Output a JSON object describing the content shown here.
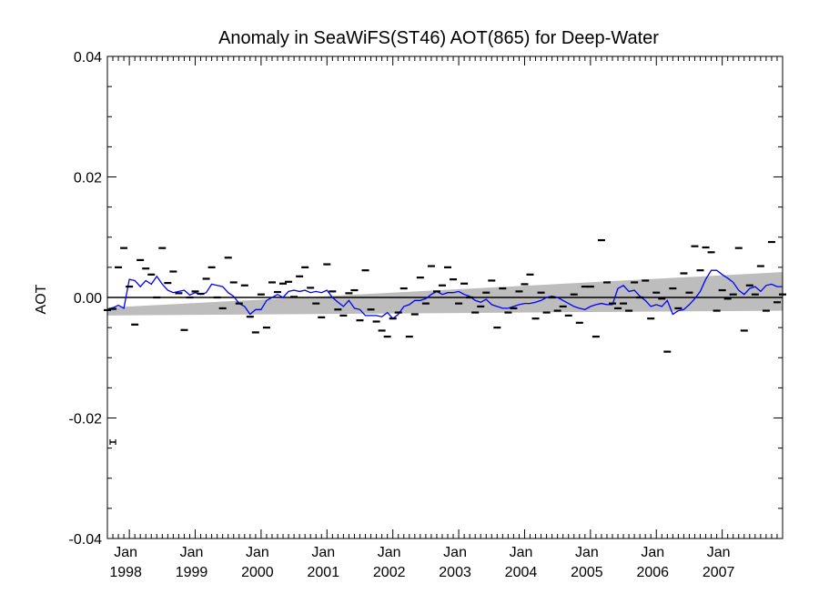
{
  "chart_data": {
    "type": "scatter",
    "title": "Anomaly in SeaWiFS(ST46) AOT(865) for Deep-Water",
    "xlabel": "",
    "ylabel": "AOT",
    "ylim": [
      -0.04,
      0.04
    ],
    "xlim": [
      "1997-09",
      "2007-12"
    ],
    "yticks": [
      "0.04",
      "0.02",
      "0.00",
      "-0.02",
      "-0.04"
    ],
    "ytick_values": [
      0.04,
      0.02,
      0.0,
      -0.02,
      -0.04
    ],
    "xticks": [
      {
        "month": "Jan",
        "year": "1998",
        "date": "1998-01"
      },
      {
        "month": "Jan",
        "year": "1999",
        "date": "1999-01"
      },
      {
        "month": "Jan",
        "year": "2000",
        "date": "2000-01"
      },
      {
        "month": "Jan",
        "year": "2001",
        "date": "2001-01"
      },
      {
        "month": "Jan",
        "year": "2002",
        "date": "2002-01"
      },
      {
        "month": "Jan",
        "year": "2003",
        "date": "2003-01"
      },
      {
        "month": "Jan",
        "year": "2004",
        "date": "2004-01"
      },
      {
        "month": "Jan",
        "year": "2005",
        "date": "2005-01"
      },
      {
        "month": "Jan",
        "year": "2006",
        "date": "2006-01"
      },
      {
        "month": "Jan",
        "year": "2007",
        "date": "2007-01"
      }
    ],
    "zero_line": true,
    "grid": false,
    "error_bar_sample": {
      "x": "1997-10",
      "y": -0.024,
      "halfwidth_months": 0.5
    },
    "trend_band": {
      "x": [
        "1997-09",
        "2007-12"
      ],
      "lower": [
        -0.003,
        -0.0022
      ],
      "upper": [
        -0.0017,
        0.0042
      ]
    },
    "series": [
      {
        "kind": "monthly_anomalies",
        "color": "#000000",
        "x": [
          "1997-09",
          "1997-10",
          "1997-11",
          "1997-12",
          "1998-01",
          "1998-02",
          "1998-03",
          "1998-04",
          "1998-05",
          "1998-06",
          "1998-07",
          "1998-08",
          "1998-09",
          "1998-10",
          "1998-11",
          "1998-12",
          "1999-01",
          "1999-02",
          "1999-03",
          "1999-04",
          "1999-05",
          "1999-06",
          "1999-07",
          "1999-08",
          "1999-09",
          "1999-10",
          "1999-11",
          "1999-12",
          "2000-01",
          "2000-02",
          "2000-03",
          "2000-04",
          "2000-05",
          "2000-06",
          "2000-07",
          "2000-08",
          "2000-09",
          "2000-10",
          "2000-11",
          "2000-12",
          "2001-01",
          "2001-02",
          "2001-03",
          "2001-04",
          "2001-05",
          "2001-06",
          "2001-07",
          "2001-08",
          "2001-09",
          "2001-10",
          "2001-11",
          "2001-12",
          "2002-01",
          "2002-02",
          "2002-03",
          "2002-04",
          "2002-05",
          "2002-06",
          "2002-07",
          "2002-08",
          "2002-09",
          "2002-10",
          "2002-11",
          "2002-12",
          "2003-01",
          "2003-02",
          "2003-03",
          "2003-04",
          "2003-05",
          "2003-06",
          "2003-07",
          "2003-08",
          "2003-09",
          "2003-10",
          "2003-11",
          "2003-12",
          "2004-01",
          "2004-02",
          "2004-03",
          "2004-04",
          "2004-05",
          "2004-06",
          "2004-07",
          "2004-08",
          "2004-09",
          "2004-10",
          "2004-11",
          "2004-12",
          "2005-01",
          "2005-02",
          "2005-03",
          "2005-04",
          "2005-05",
          "2005-06",
          "2005-07",
          "2005-08",
          "2005-09",
          "2005-10",
          "2005-11",
          "2005-12",
          "2006-01",
          "2006-02",
          "2006-03",
          "2006-04",
          "2006-05",
          "2006-06",
          "2006-07",
          "2006-08",
          "2006-09",
          "2006-10",
          "2006-11",
          "2006-12",
          "2007-01",
          "2007-02",
          "2007-03",
          "2007-04",
          "2007-05",
          "2007-06",
          "2007-07",
          "2007-08",
          "2007-09",
          "2007-10",
          "2007-11",
          "2007-12"
        ],
        "y": [
          -0.0021,
          -0.0019,
          0.005,
          0.0082,
          0.0018,
          -0.0045,
          0.0062,
          0.0048,
          0.0038,
          0.0,
          0.0082,
          0.0024,
          0.0043,
          0.0007,
          -0.0054,
          0.0,
          0.001,
          0.0006,
          0.0031,
          0.005,
          0.0,
          -0.0018,
          0.0066,
          0.0025,
          -0.001,
          0.002,
          -0.0032,
          -0.0058,
          0.0005,
          -0.005,
          0.0025,
          0.0009,
          0.0023,
          0.0026,
          0.0001,
          0.0035,
          0.005,
          0.0016,
          -0.001,
          -0.0033,
          0.0055,
          0.001,
          -0.002,
          -0.003,
          0.0007,
          0.0012,
          -0.0038,
          0.0045,
          -0.002,
          -0.004,
          -0.0055,
          -0.0065,
          -0.0035,
          -0.0025,
          0.0015,
          -0.0065,
          -0.0028,
          0.0033,
          -0.001,
          0.0052,
          0.001,
          0.002,
          0.005,
          0.003,
          -0.001,
          0.0023,
          0.0,
          -0.0025,
          -0.0015,
          0.0008,
          0.0028,
          -0.005,
          0.0015,
          -0.0025,
          -0.0018,
          0.001,
          0.0022,
          0.0038,
          -0.0035,
          0.0008,
          -0.0025,
          0.0,
          -0.0022,
          -0.0015,
          -0.003,
          0.0005,
          -0.0042,
          0.0018,
          0.0018,
          -0.0065,
          0.0095,
          0.0025,
          -0.001,
          -0.0018,
          -0.001,
          -0.0022,
          0.0025,
          0.0,
          0.0028,
          -0.0035,
          0.0008,
          -0.0002,
          -0.009,
          0.0015,
          -0.0018,
          0.004,
          0.0008,
          0.0085,
          0.0045,
          0.0083,
          0.0075,
          -0.0022,
          0.0012,
          -0.0002,
          0.0005,
          0.0082,
          -0.0055,
          0.002,
          0.0005,
          0.0052,
          -0.0022,
          0.0092,
          -0.0008,
          0.0005
        ]
      },
      {
        "kind": "smoothed",
        "color": "#0000ff",
        "x": [
          "1997-09",
          "1997-10",
          "1997-11",
          "1997-12",
          "1998-01",
          "1998-02",
          "1998-03",
          "1998-04",
          "1998-05",
          "1998-06",
          "1998-07",
          "1998-08",
          "1998-09",
          "1998-10",
          "1998-11",
          "1998-12",
          "1999-01",
          "1999-02",
          "1999-03",
          "1999-04",
          "1999-05",
          "1999-06",
          "1999-07",
          "1999-08",
          "1999-09",
          "1999-10",
          "1999-11",
          "1999-12",
          "2000-01",
          "2000-02",
          "2000-03",
          "2000-04",
          "2000-05",
          "2000-06",
          "2000-07",
          "2000-08",
          "2000-09",
          "2000-10",
          "2000-11",
          "2000-12",
          "2001-01",
          "2001-02",
          "2001-03",
          "2001-04",
          "2001-05",
          "2001-06",
          "2001-07",
          "2001-08",
          "2001-09",
          "2001-10",
          "2001-11",
          "2001-12",
          "2002-01",
          "2002-02",
          "2002-03",
          "2002-04",
          "2002-05",
          "2002-06",
          "2002-07",
          "2002-08",
          "2002-09",
          "2002-10",
          "2002-11",
          "2002-12",
          "2003-01",
          "2003-02",
          "2003-03",
          "2003-04",
          "2003-05",
          "2003-06",
          "2003-07",
          "2003-08",
          "2003-09",
          "2003-10",
          "2003-11",
          "2003-12",
          "2004-01",
          "2004-02",
          "2004-03",
          "2004-04",
          "2004-05",
          "2004-06",
          "2004-07",
          "2004-08",
          "2004-09",
          "2004-10",
          "2004-11",
          "2004-12",
          "2005-01",
          "2005-02",
          "2005-03",
          "2005-04",
          "2005-05",
          "2005-06",
          "2005-07",
          "2005-08",
          "2005-09",
          "2005-10",
          "2005-11",
          "2005-12",
          "2006-01",
          "2006-02",
          "2006-03",
          "2006-04",
          "2006-05",
          "2006-06",
          "2006-07",
          "2006-08",
          "2006-09",
          "2006-10",
          "2006-11",
          "2006-12",
          "2007-01",
          "2007-02",
          "2007-03",
          "2007-04",
          "2007-05",
          "2007-06",
          "2007-07",
          "2007-08",
          "2007-09",
          "2007-10",
          "2007-11",
          "2007-12"
        ],
        "y": [
          -0.002,
          -0.0017,
          -0.0013,
          -0.0018,
          0.003,
          0.0028,
          0.0018,
          0.0028,
          0.0022,
          0.0035,
          0.0022,
          0.0012,
          0.0008,
          0.001,
          0.0012,
          0.0004,
          0.0008,
          0.0005,
          0.0008,
          0.0022,
          0.002,
          0.0018,
          0.0008,
          0.0002,
          -0.001,
          -0.0015,
          -0.0028,
          -0.002,
          -0.002,
          -0.0005,
          0.0,
          0.0005,
          0.0,
          0.001,
          0.0012,
          0.001,
          0.0012,
          0.0008,
          0.001,
          0.0008,
          0.0012,
          0.0,
          -0.0008,
          -0.0015,
          -0.0005,
          -0.0018,
          -0.002,
          -0.003,
          -0.003,
          -0.003,
          -0.0032,
          -0.0025,
          -0.0035,
          -0.0028,
          -0.0015,
          -0.0012,
          -0.0005,
          -0.0005,
          -0.0002,
          0.0005,
          0.001,
          0.0005,
          0.0008,
          0.0008,
          0.001,
          0.0005,
          0.0002,
          -0.0005,
          -0.0008,
          -0.0003,
          -0.0012,
          -0.0015,
          -0.0018,
          -0.0018,
          -0.0015,
          -0.0012,
          -0.001,
          -0.001,
          -0.0008,
          -0.0005,
          0.0,
          0.0002,
          0.0,
          -0.0005,
          -0.001,
          -0.0015,
          -0.0018,
          -0.002,
          -0.0015,
          -0.0012,
          -0.001,
          -0.0012,
          -0.0012,
          0.0015,
          0.002,
          0.001,
          0.0012,
          0.0002,
          -0.0005,
          -0.0015,
          -0.0012,
          -0.0015,
          -0.0005,
          -0.0028,
          -0.0022,
          -0.002,
          -0.0012,
          -0.0002,
          0.001,
          0.003,
          0.0045,
          0.0045,
          0.0038,
          0.0032,
          0.0025,
          0.0012,
          0.0005,
          0.0015,
          0.0018,
          0.001,
          0.002,
          0.0022,
          0.0018,
          0.0018
        ]
      }
    ]
  }
}
